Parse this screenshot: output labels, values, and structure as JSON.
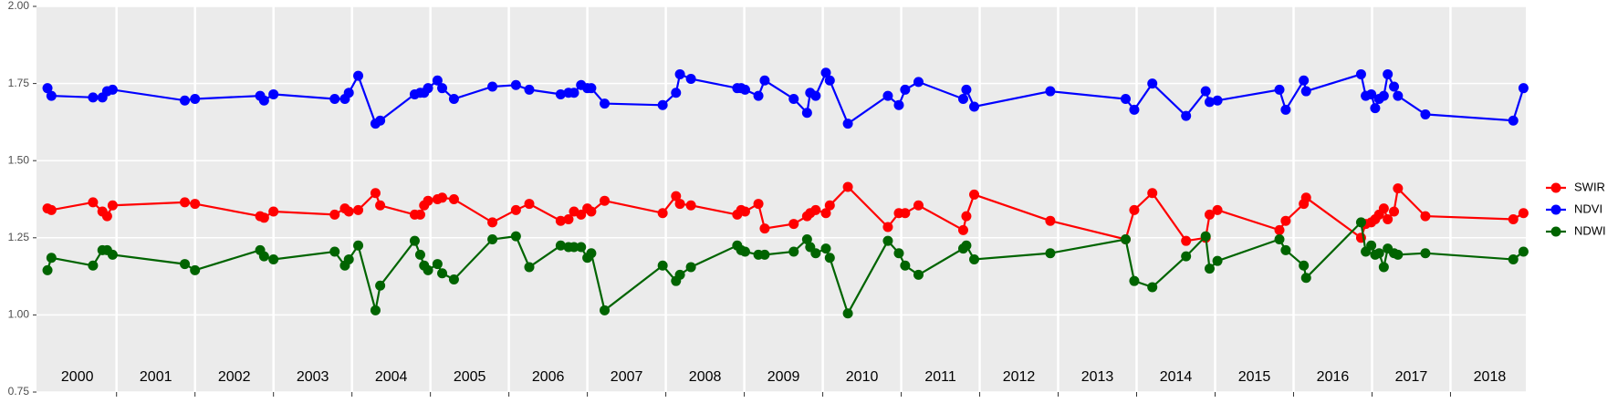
{
  "chart_data": {
    "type": "line",
    "x": [
      2000.12,
      2000.17,
      2000.7,
      2000.82,
      2000.88,
      2000.95,
      2001.87,
      2002.0,
      2002.83,
      2002.88,
      2003.0,
      2003.78,
      2003.91,
      2003.96,
      2004.08,
      2004.3,
      2004.36,
      2004.8,
      2004.87,
      2004.92,
      2004.97,
      2005.09,
      2005.15,
      2005.3,
      2005.79,
      2006.09,
      2006.26,
      2006.66,
      2006.76,
      2006.83,
      2006.92,
      2007.0,
      2007.05,
      2007.22,
      2007.96,
      2008.13,
      2008.18,
      2008.32,
      2008.91,
      2008.96,
      2009.01,
      2009.18,
      2009.26,
      2009.63,
      2009.8,
      2009.84,
      2009.91,
      2010.04,
      2010.09,
      2010.32,
      2010.83,
      2010.97,
      2011.05,
      2011.22,
      2011.79,
      2011.83,
      2011.93,
      2012.9,
      2013.86,
      2013.97,
      2014.2,
      2014.63,
      2014.88,
      2014.93,
      2015.03,
      2015.82,
      2015.9,
      2016.13,
      2016.16,
      2016.86,
      2016.92,
      2016.99,
      2017.04,
      2017.09,
      2017.15,
      2017.2,
      2017.28,
      2017.33,
      2017.68,
      2018.8,
      2018.93
    ],
    "series": [
      {
        "name": "SWIR",
        "color": "#ff0000",
        "values": [
          1.345,
          1.34,
          1.365,
          1.335,
          1.32,
          1.355,
          1.365,
          1.36,
          1.32,
          1.315,
          1.335,
          1.325,
          1.345,
          1.335,
          1.34,
          1.395,
          1.355,
          1.325,
          1.325,
          1.355,
          1.37,
          1.375,
          1.38,
          1.375,
          1.3,
          1.34,
          1.36,
          1.305,
          1.31,
          1.335,
          1.325,
          1.345,
          1.335,
          1.37,
          1.33,
          1.385,
          1.36,
          1.355,
          1.325,
          1.34,
          1.335,
          1.36,
          1.28,
          1.295,
          1.32,
          1.33,
          1.34,
          1.33,
          1.355,
          1.415,
          1.285,
          1.33,
          1.33,
          1.355,
          1.275,
          1.32,
          1.39,
          1.305,
          1.245,
          1.34,
          1.395,
          1.24,
          1.25,
          1.325,
          1.34,
          1.275,
          1.305,
          1.36,
          1.38,
          1.25,
          1.295,
          1.3,
          1.31,
          1.325,
          1.345,
          1.31,
          1.335,
          1.41,
          1.32,
          1.31,
          1.33
        ]
      },
      {
        "name": "NDVI",
        "color": "#0000ff",
        "values": [
          1.735,
          1.71,
          1.705,
          1.705,
          1.725,
          1.73,
          1.695,
          1.7,
          1.71,
          1.695,
          1.715,
          1.7,
          1.7,
          1.72,
          1.775,
          1.62,
          1.63,
          1.715,
          1.72,
          1.72,
          1.735,
          1.76,
          1.735,
          1.7,
          1.74,
          1.745,
          1.73,
          1.715,
          1.72,
          1.72,
          1.745,
          1.735,
          1.735,
          1.685,
          1.68,
          1.72,
          1.78,
          1.765,
          1.735,
          1.735,
          1.73,
          1.71,
          1.76,
          1.7,
          1.655,
          1.72,
          1.71,
          1.785,
          1.76,
          1.62,
          1.71,
          1.68,
          1.73,
          1.755,
          1.7,
          1.73,
          1.675,
          1.725,
          1.7,
          1.665,
          1.75,
          1.645,
          1.725,
          1.69,
          1.695,
          1.73,
          1.665,
          1.76,
          1.725,
          1.78,
          1.71,
          1.715,
          1.67,
          1.7,
          1.71,
          1.78,
          1.74,
          1.71,
          1.65,
          1.63,
          1.735
        ]
      },
      {
        "name": "NDWI",
        "color": "#006400",
        "values": [
          1.145,
          1.185,
          1.16,
          1.21,
          1.21,
          1.195,
          1.165,
          1.145,
          1.21,
          1.19,
          1.18,
          1.205,
          1.16,
          1.18,
          1.225,
          1.015,
          1.095,
          1.24,
          1.195,
          1.16,
          1.145,
          1.165,
          1.135,
          1.115,
          1.245,
          1.255,
          1.155,
          1.225,
          1.22,
          1.22,
          1.22,
          1.185,
          1.2,
          1.015,
          1.16,
          1.11,
          1.13,
          1.155,
          1.225,
          1.21,
          1.205,
          1.195,
          1.195,
          1.205,
          1.245,
          1.22,
          1.2,
          1.215,
          1.185,
          1.005,
          1.24,
          1.2,
          1.16,
          1.13,
          1.215,
          1.225,
          1.18,
          1.2,
          1.245,
          1.11,
          1.09,
          1.19,
          1.255,
          1.15,
          1.175,
          1.245,
          1.21,
          1.16,
          1.12,
          1.3,
          1.205,
          1.225,
          1.195,
          1.2,
          1.155,
          1.215,
          1.2,
          1.195,
          1.2,
          1.18,
          1.205
        ]
      }
    ],
    "xlim": [
      1999.98,
      2018.96
    ],
    "xticks": [
      2001,
      2002,
      2003,
      2004,
      2005,
      2006,
      2007,
      2008,
      2009,
      2010,
      2011,
      2012,
      2013,
      2014,
      2015,
      2016,
      2017,
      2018
    ],
    "year_labels": [
      2000,
      2001,
      2002,
      2003,
      2004,
      2005,
      2006,
      2007,
      2008,
      2009,
      2010,
      2011,
      2012,
      2013,
      2014,
      2015,
      2016,
      2017,
      2018
    ],
    "ylim": [
      0.75,
      2.0
    ],
    "yticks": [
      {
        "value": 0.75,
        "label": "0.75"
      },
      {
        "value": 1.0,
        "label": "1.00"
      },
      {
        "value": 1.25,
        "label": "1.25"
      },
      {
        "value": 1.5,
        "label": "1.50"
      },
      {
        "value": 1.75,
        "label": "1.75"
      },
      {
        "value": 2.0,
        "label": "2.00"
      }
    ],
    "grid": true,
    "legend": "right"
  }
}
